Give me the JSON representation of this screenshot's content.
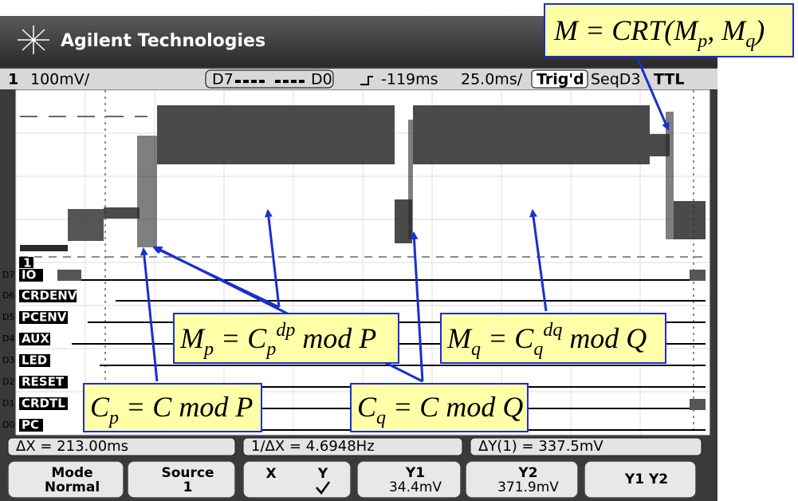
{
  "header": {
    "brand": "Agilent Technologies"
  },
  "status": {
    "channel": "1",
    "scale": "100mV/",
    "digital_hi": "D7",
    "digital_lo": "D0",
    "delay": "-119ms",
    "timebase": "25.0ms/",
    "trigger_state": "Trig'd",
    "sequence": "SeqD3",
    "trigger_level": "TTL"
  },
  "analog_marker": "1",
  "channels": [
    {
      "id": "D7",
      "label": "IO"
    },
    {
      "id": "D6",
      "label": "CRDENV"
    },
    {
      "id": "D5",
      "label": "PCENV"
    },
    {
      "id": "D4",
      "label": "AUX"
    },
    {
      "id": "D3",
      "label": "LED"
    },
    {
      "id": "D2",
      "label": "RESET"
    },
    {
      "id": "D1",
      "label": "CRDTL"
    },
    {
      "id": "D0",
      "label": "PC"
    }
  ],
  "measurements": [
    "ΔX = 213.00ms",
    "1/ΔX = 4.6948Hz",
    "ΔY(1) = 337.5mV"
  ],
  "softkeys": [
    {
      "title": "Mode",
      "value": "Normal"
    },
    {
      "title": "Source",
      "value": "1"
    },
    {
      "title": "X",
      "value": "Y"
    },
    {
      "title": "Y1",
      "value": "34.4mV"
    },
    {
      "title": "Y2",
      "value": "371.9mV"
    },
    {
      "title": "Y1 Y2"
    }
  ],
  "annotations": {
    "crt": [
      "M = CRT(M",
      "p",
      ", M",
      "q",
      ")"
    ],
    "mp": [
      "M",
      "p",
      " = C",
      "p",
      "dp",
      " mod P"
    ],
    "mq": [
      "M",
      "q",
      " = C",
      "q",
      "dq",
      " mod Q"
    ],
    "cp": [
      "C",
      "p",
      " = C mod P"
    ],
    "cq": [
      "C",
      "q",
      " = C mod Q"
    ]
  }
}
